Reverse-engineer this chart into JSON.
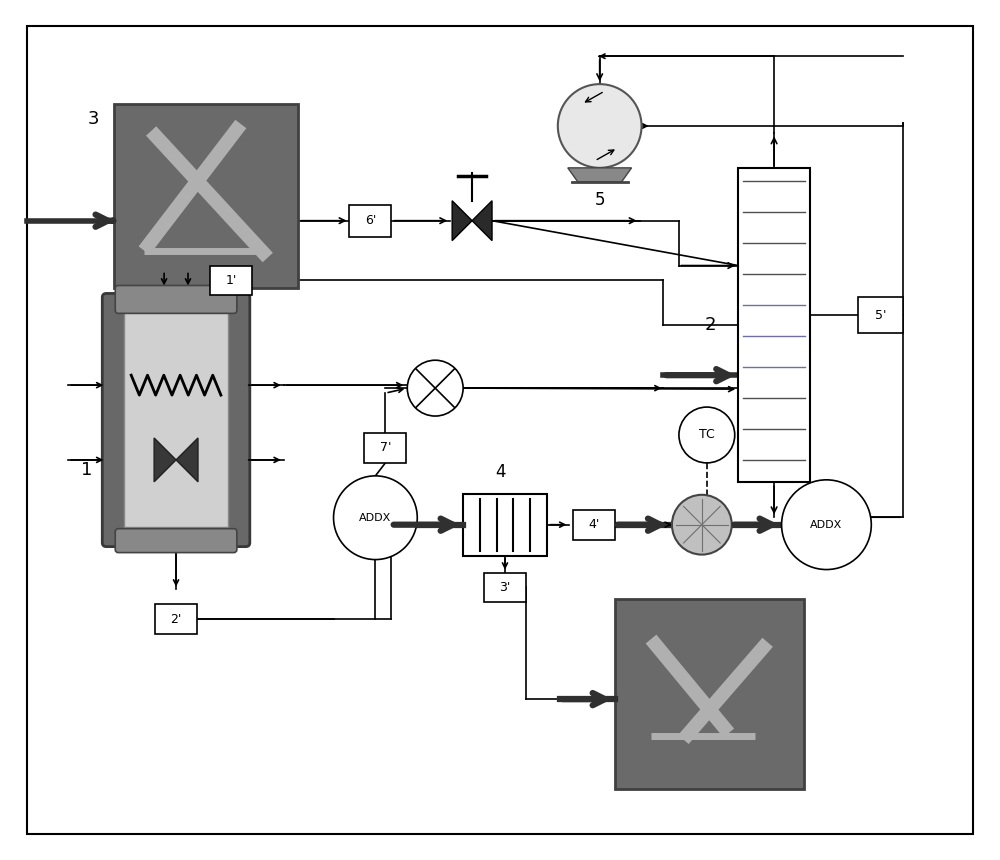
{
  "bg_color": "#ffffff",
  "gray_box_fc": "#6a6a6a",
  "gray_box_ec": "#404040",
  "reactor_outer_fc": "#707070",
  "reactor_inner_fc": "#c8c8c8",
  "pump_fc": "#e8e8e8",
  "rotary_fc": "#b0b0b0",
  "col2_line_colors": [
    "#505050",
    "#505050",
    "#505050",
    "#7070a0",
    "#7070a0",
    "#7070a0",
    "#505050",
    "#505050",
    "#505050",
    "#505050"
  ],
  "labels": {
    "3_top": "3",
    "1_reactor": "1",
    "2_column": "2",
    "4_heatex": "4",
    "5_pump": "5",
    "1p": "1'",
    "2p": "2'",
    "3p": "3'",
    "4p": "4'",
    "5p": "5'",
    "6p": "6'",
    "7p": "7'",
    "addx1": "ADDX",
    "addx2": "ADDX",
    "tc": "TC"
  }
}
